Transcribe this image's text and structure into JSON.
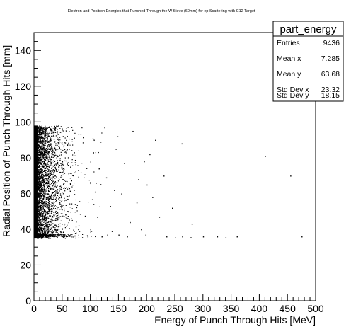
{
  "chart_data": {
    "type": "scatter",
    "title": "Electron and Positron Energies that Punched Through the W Sieve (60mm) for ep Scattering with C12 Target",
    "xlabel": "Energy of Punch Through Hits [MeV]",
    "ylabel": "Radial Position of Punch Through Hits [mm]",
    "xlim": [
      0,
      500
    ],
    "ylim": [
      0,
      150
    ],
    "x_ticks": [
      "0",
      "50",
      "100",
      "150",
      "200",
      "250",
      "300",
      "350",
      "400",
      "450",
      "500"
    ],
    "y_ticks": [
      "0",
      "20",
      "40",
      "60",
      "80",
      "100",
      "120",
      "140"
    ],
    "grid": false,
    "distribution": {
      "dense_band_x": [
        0,
        5
      ],
      "y_range": [
        35,
        98
      ],
      "bottom_edge_y": 36,
      "max_x": 475,
      "entries": 9436
    },
    "series": [
      {
        "name": "",
        "points": [
          [
            235,
            36
          ],
          [
            250,
            35.5
          ],
          [
            263,
            36
          ],
          [
            278,
            35.5
          ],
          [
            300,
            36
          ],
          [
            325,
            36
          ],
          [
            340,
            35.5
          ],
          [
            360,
            36
          ],
          [
            475,
            36
          ],
          [
            410,
            81
          ],
          [
            455,
            70
          ],
          [
            205,
            82
          ],
          [
            155,
            60
          ],
          [
            170,
            44
          ],
          [
            182,
            55
          ],
          [
            195,
            78
          ],
          [
            222,
            47
          ],
          [
            148,
            92
          ],
          [
            128,
            69
          ],
          [
            135,
            53
          ],
          [
            160,
            77
          ],
          [
            175,
            95
          ],
          [
            190,
            40
          ],
          [
            200,
            65
          ],
          [
            118,
            89
          ],
          [
            112,
            47
          ],
          [
            105,
            83
          ],
          [
            138,
            39
          ],
          [
            142,
            62
          ],
          [
            210,
            58
          ],
          [
            230,
            70
          ],
          [
            245,
            52
          ],
          [
            262,
            88
          ],
          [
            280,
            43
          ],
          [
            150,
            37
          ],
          [
            165,
            36
          ],
          [
            120,
            36
          ],
          [
            130,
            37
          ],
          [
            95,
            36
          ],
          [
            100,
            40
          ],
          [
            108,
            61
          ],
          [
            115,
            74
          ],
          [
            125,
            97
          ],
          [
            145,
            85
          ],
          [
            185,
            68
          ],
          [
            215,
            90
          ],
          [
            198,
            37
          ]
        ]
      }
    ],
    "stats": {
      "name": "part_energy",
      "rows": [
        {
          "label": "Entries",
          "value": "9436"
        },
        {
          "label": "Mean x",
          "value": "7.285"
        },
        {
          "label": "Mean y",
          "value": "63.68"
        },
        {
          "label": "Std Dev x",
          "value": "23.32"
        },
        {
          "label": "Std Dev y",
          "value": "18.15"
        }
      ]
    }
  }
}
